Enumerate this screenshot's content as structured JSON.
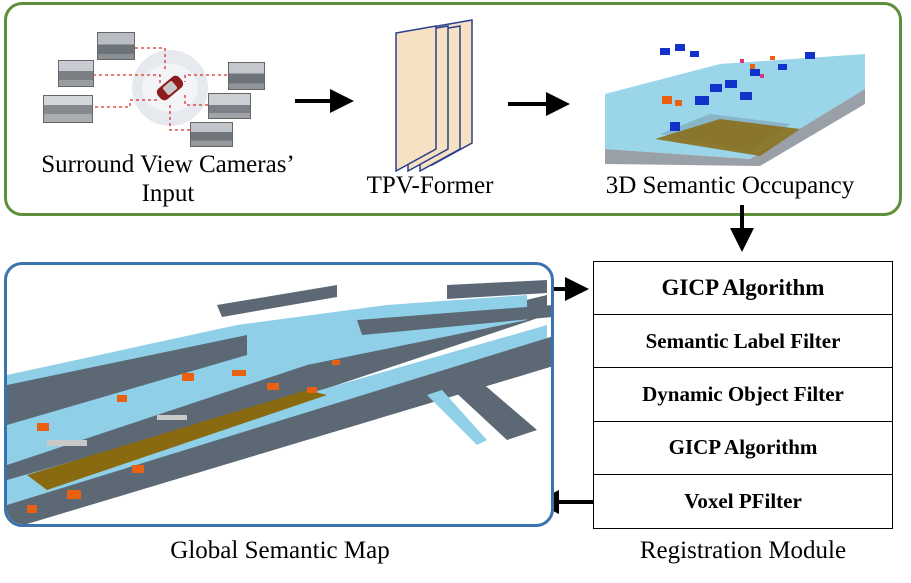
{
  "pipeline": {
    "input_caption_line1": "Surround View Cameras’",
    "input_caption_line2": "Input",
    "former_caption": "TPV-Former",
    "occupancy_caption": "3D Semantic Occupancy"
  },
  "global_map": {
    "caption": "Global Semantic Map"
  },
  "registration": {
    "caption": "Registration Module",
    "steps": [
      "GICP Algorithm",
      "Semantic Label Filter",
      "Dynamic Object Filter",
      "GICP Algorithm",
      "Voxel PFilter"
    ]
  },
  "colors": {
    "pipeline_border": "#5e8f3a",
    "map_border": "#3a73ad",
    "road": "#8fd0e8",
    "building": "#5d6875",
    "vegetation": "#8a6a10",
    "car": "#1133cc",
    "orange": "#e86010",
    "tpv_panel": "#f6e2c2"
  }
}
